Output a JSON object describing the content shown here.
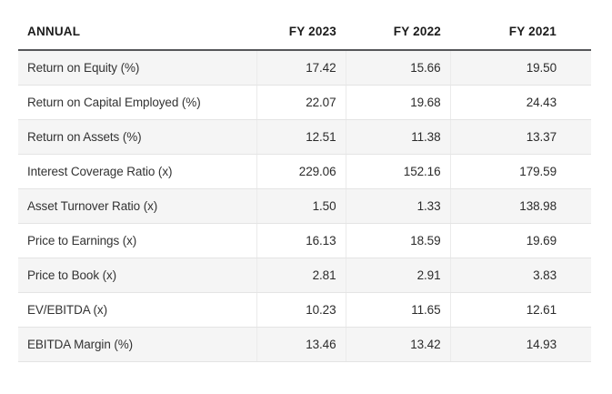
{
  "chart_data": {
    "type": "table",
    "columns": [
      "ANNUAL",
      "FY 2023",
      "FY 2022",
      "FY 2021"
    ],
    "rows": [
      {
        "label": "Return on Equity (%)",
        "values": [
          "17.42",
          "15.66",
          "19.50"
        ]
      },
      {
        "label": "Return on Capital Employed (%)",
        "values": [
          "22.07",
          "19.68",
          "24.43"
        ]
      },
      {
        "label": "Return on Assets (%)",
        "values": [
          "12.51",
          "11.38",
          "13.37"
        ]
      },
      {
        "label": "Interest Coverage Ratio (x)",
        "values": [
          "229.06",
          "152.16",
          "179.59"
        ]
      },
      {
        "label": "Asset Turnover Ratio (x)",
        "values": [
          "1.50",
          "1.33",
          "138.98"
        ]
      },
      {
        "label": "Price to Earnings (x)",
        "values": [
          "16.13",
          "18.59",
          "19.69"
        ]
      },
      {
        "label": "Price to Book (x)",
        "values": [
          "2.81",
          "2.91",
          "3.83"
        ]
      },
      {
        "label": "EV/EBITDA (x)",
        "values": [
          "10.23",
          "11.65",
          "12.61"
        ]
      },
      {
        "label": "EBITDA Margin (%)",
        "values": [
          "13.46",
          "13.42",
          "14.93"
        ]
      }
    ],
    "layout_hints": {
      "zebra_striping": "odd rows shaded",
      "numeric_alignment": "right",
      "grid": "horizontal separators + faint vertical separators"
    }
  },
  "colors": {
    "row_alt_bg": "#f5f5f5",
    "row_bg": "#ffffff",
    "header_underline": "#56575a",
    "row_border": "#e4e4e4",
    "column_border": "#ebebeb",
    "text": "#2b2b2b"
  }
}
